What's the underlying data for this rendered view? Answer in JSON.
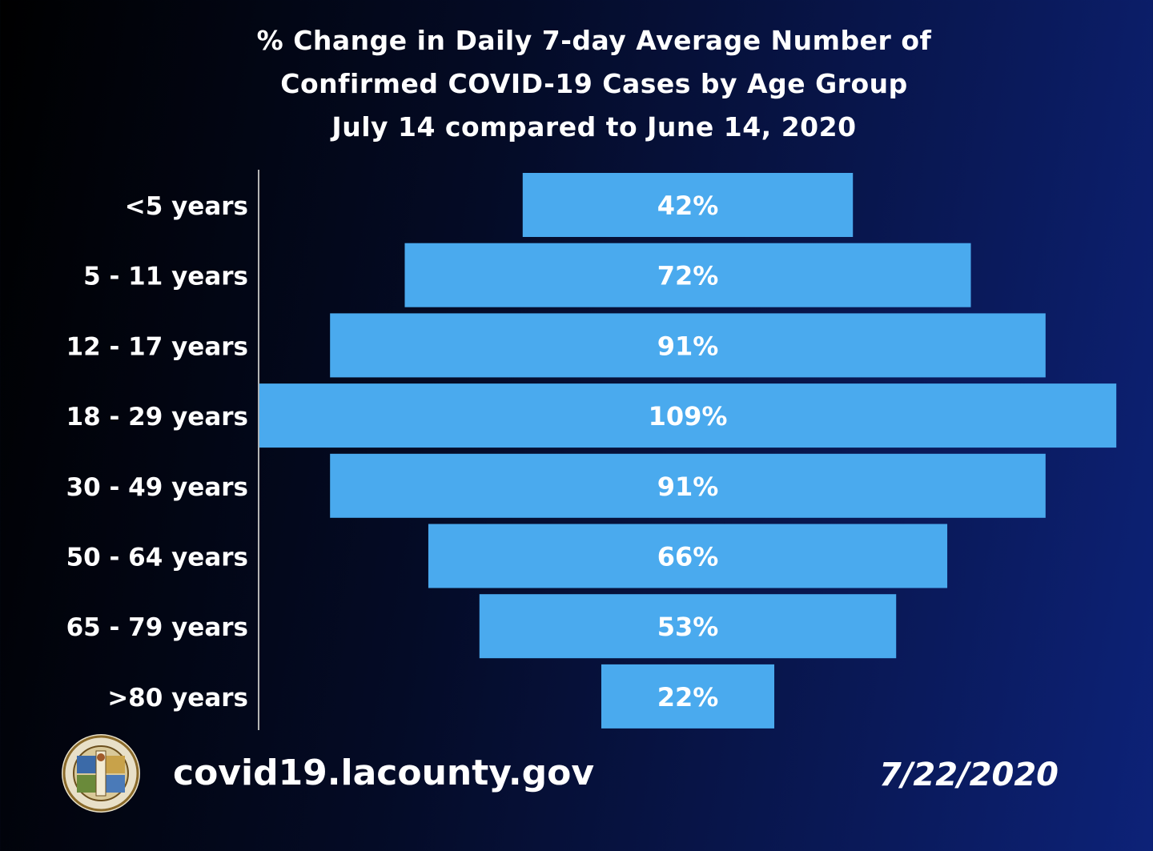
{
  "chart_data": {
    "type": "bar",
    "orientation": "horizontal-centered",
    "title": [
      "% Change in Daily 7-day Average Number of",
      "Confirmed COVID-19 Cases by Age Group",
      "July 14 compared to June 14, 2020"
    ],
    "categories": [
      "<5 years",
      "5 - 11 years",
      "12 - 17 years",
      "18 - 29 years",
      "30 - 49 years",
      "50 - 64 years",
      "65 - 79 years",
      ">80 years"
    ],
    "values": [
      42,
      72,
      91,
      109,
      91,
      66,
      53,
      22
    ],
    "value_labels": [
      "42%",
      "72%",
      "91%",
      "109%",
      "91%",
      "66%",
      "53%",
      "22%"
    ],
    "units": "%",
    "bar_color": "#4aaaee",
    "grid": false,
    "legend": "none"
  },
  "footer": {
    "seal": "county-seal-icon",
    "website": "covid19.lacounty.gov",
    "date": "7/22/2020"
  }
}
